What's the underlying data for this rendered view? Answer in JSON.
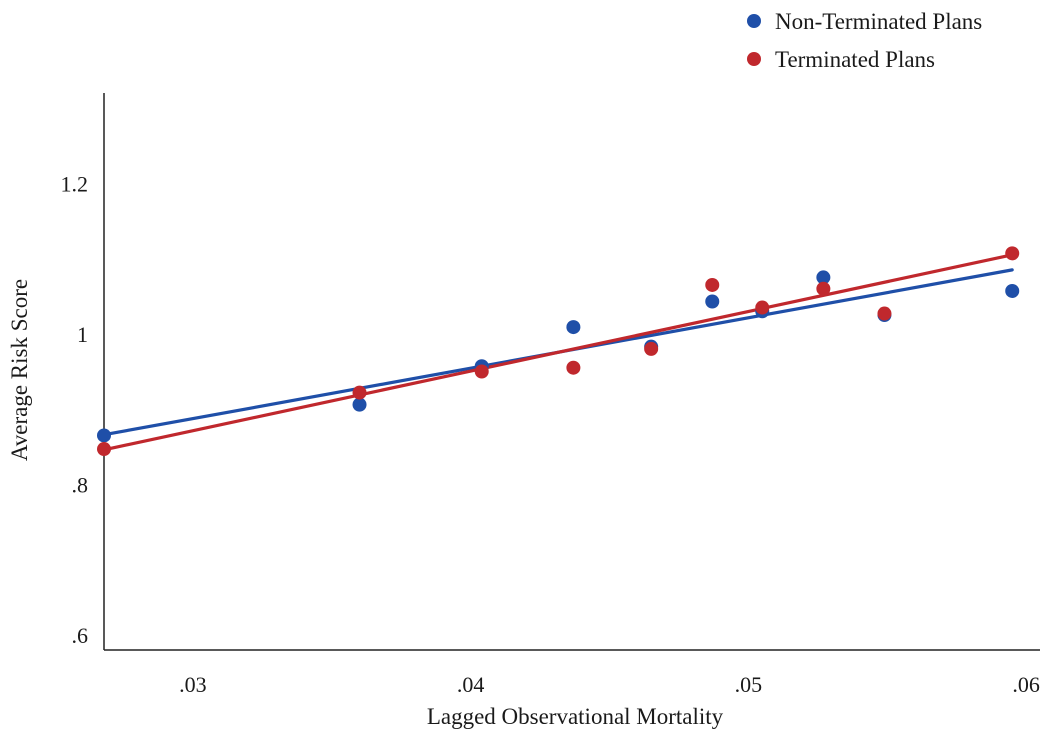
{
  "chart_data": {
    "type": "scatter",
    "title": "",
    "xlabel": "Lagged Observational Mortality",
    "ylabel": "Average Risk Score",
    "xlim": [
      0.0268,
      0.0605
    ],
    "ylim": [
      0.58,
      1.32
    ],
    "xticks": [
      0.03,
      0.04,
      0.05,
      0.06
    ],
    "xtick_labels": [
      ".03",
      ".04",
      ".05",
      ".06"
    ],
    "yticks": [
      0.6,
      0.8,
      1.0,
      1.2
    ],
    "ytick_labels": [
      ".6",
      ".8",
      "1",
      "1.2"
    ],
    "grid": false,
    "legend_position": "top-right",
    "series": [
      {
        "name": "Non-Terminated Plans",
        "color": "#1f4fa8",
        "x": [
          0.0268,
          0.036,
          0.0404,
          0.0437,
          0.0465,
          0.0487,
          0.0505,
          0.0527,
          0.0549,
          0.0595
        ],
        "y": [
          0.865,
          0.906,
          0.957,
          1.009,
          0.983,
          1.043,
          1.03,
          1.075,
          1.025,
          1.057
        ],
        "fit": {
          "x": [
            0.0268,
            0.0595
          ],
          "y": [
            0.866,
            1.085
          ]
        }
      },
      {
        "name": "Terminated Plans",
        "color": "#c0282d",
        "x": [
          0.0268,
          0.036,
          0.0404,
          0.0437,
          0.0465,
          0.0487,
          0.0505,
          0.0527,
          0.0549,
          0.0595
        ],
        "y": [
          0.847,
          0.922,
          0.95,
          0.955,
          0.98,
          1.065,
          1.035,
          1.06,
          1.027,
          1.107
        ],
        "fit": {
          "x": [
            0.0268,
            0.0595
          ],
          "y": [
            0.846,
            1.105
          ]
        }
      }
    ]
  }
}
